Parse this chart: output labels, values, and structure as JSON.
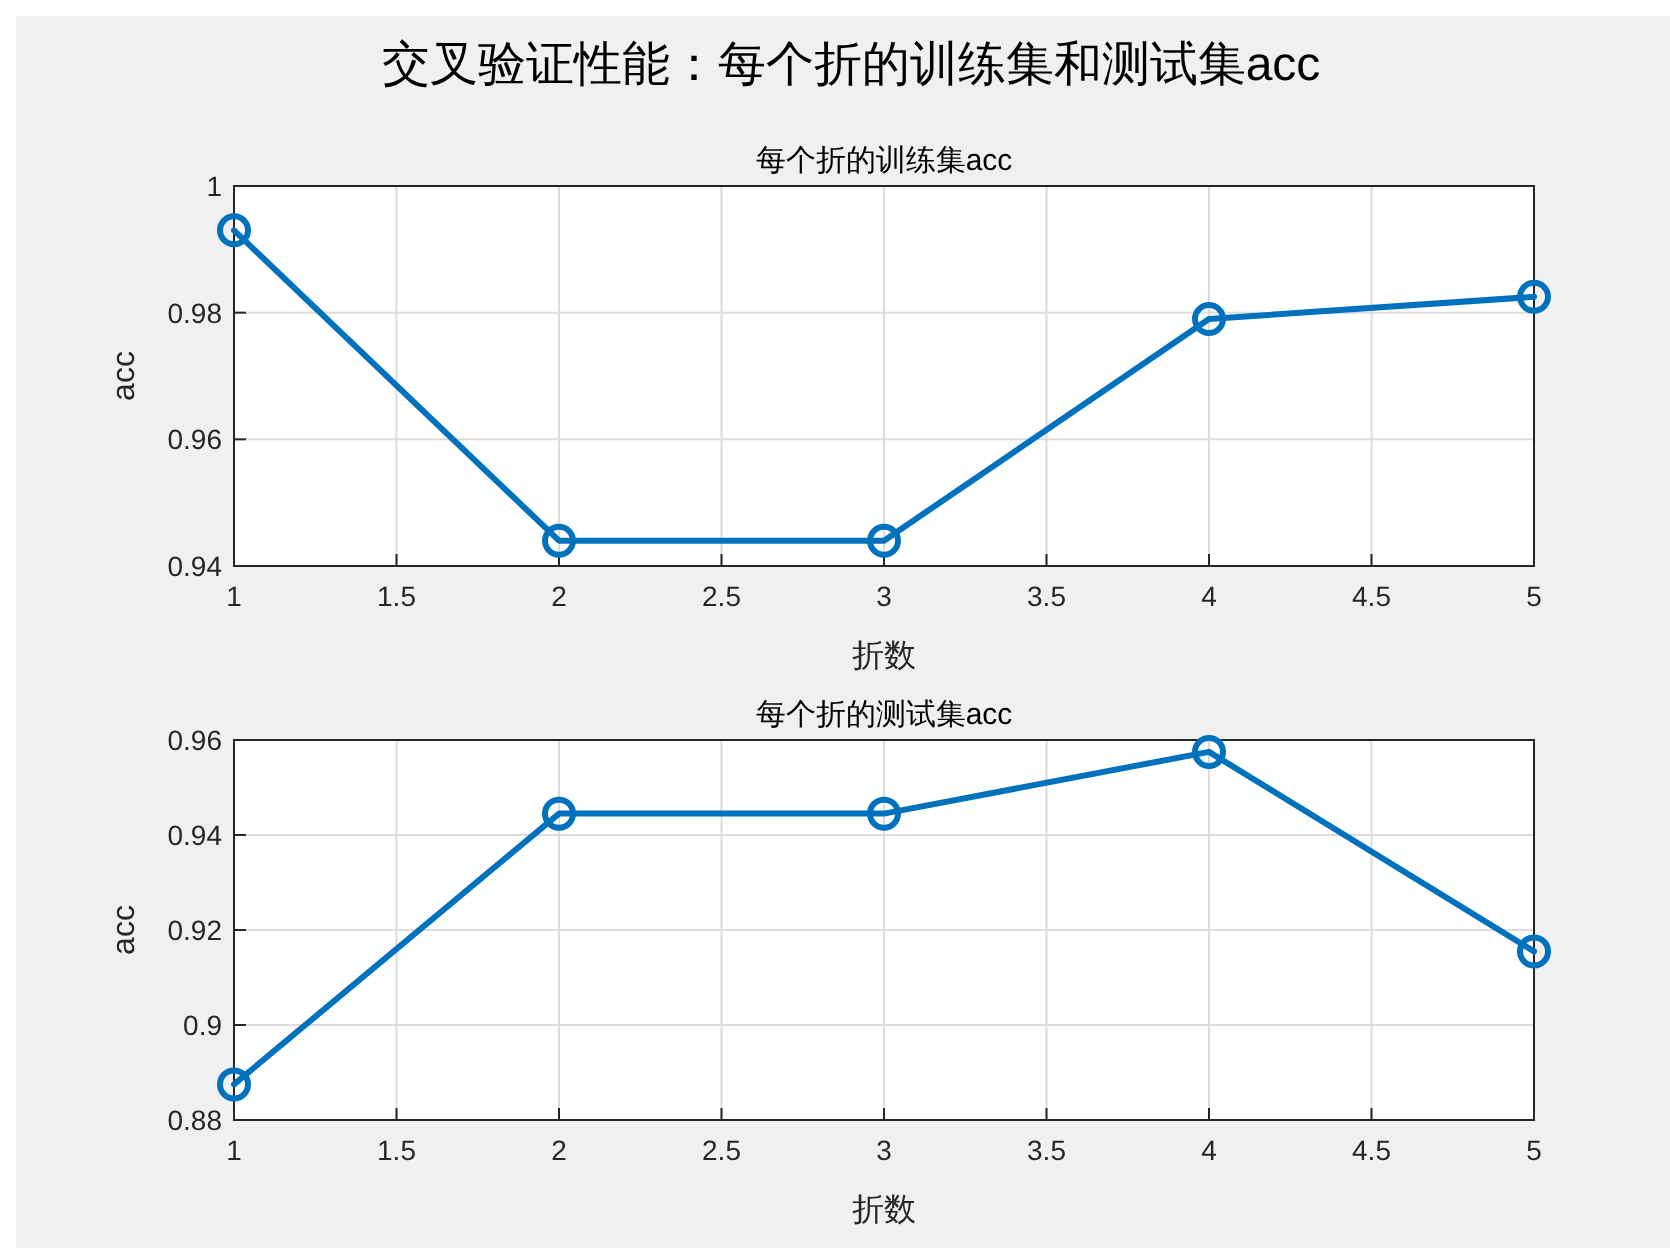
{
  "chart_data": [
    {
      "type": "other",
      "title": "交叉验证性能：每个折的训练集和测试集acc"
    },
    {
      "type": "line",
      "title": "每个折的训练集acc",
      "xlabel": "折数",
      "ylabel": "acc",
      "x": [
        1,
        2,
        3,
        4,
        5
      ],
      "series": [
        {
          "color": "#0072bd",
          "values": [
            0.993,
            0.944,
            0.944,
            0.979,
            0.9825
          ]
        }
      ],
      "xlim": [
        1,
        5
      ],
      "xticks": [
        1,
        1.5,
        2,
        2.5,
        3,
        3.5,
        4,
        4.5,
        5
      ],
      "ylim": [
        0.94,
        1
      ],
      "yticks": [
        0.94,
        0.96,
        0.98,
        1
      ],
      "grid": true,
      "marker": "circle",
      "line_style": "solid"
    },
    {
      "type": "line",
      "title": "每个折的测试集acc",
      "xlabel": "折数",
      "ylabel": "acc",
      "x": [
        1,
        2,
        3,
        4,
        5
      ],
      "series": [
        {
          "color": "#0072bd",
          "values": [
            0.8875,
            0.9445,
            0.9445,
            0.9575,
            0.9155
          ]
        }
      ],
      "xlim": [
        1,
        5
      ],
      "xticks": [
        1,
        1.5,
        2,
        2.5,
        3,
        3.5,
        4,
        4.5,
        5
      ],
      "ylim": [
        0.88,
        0.96
      ],
      "yticks": [
        0.88,
        0.9,
        0.92,
        0.94,
        0.96
      ],
      "grid": true,
      "marker": "circle",
      "line_style": "solid"
    }
  ]
}
